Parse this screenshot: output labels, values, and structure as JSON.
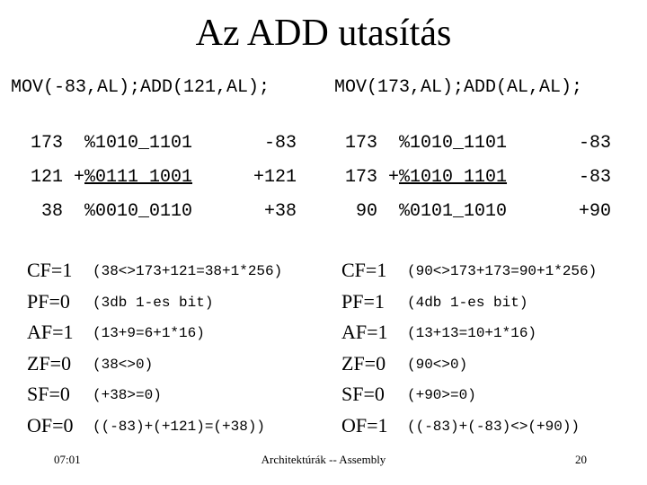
{
  "title": "Az ADD utasítás",
  "left": {
    "instruction": "MOV(-83,AL);ADD(121,AL);",
    "rows": [
      {
        "dec": "173",
        "bin": "%1010_1101",
        "signed": "-83"
      },
      {
        "dec": "121",
        "op": "+",
        "bin": "%0111_1001",
        "signed": "+121"
      },
      {
        "dec": "38",
        "bin": "%0010_0110",
        "signed": "+38"
      }
    ],
    "flags": [
      {
        "flag": "CF=1",
        "note": "(38<>173+121=38+1*256)"
      },
      {
        "flag": "PF=0",
        "note": "(3db 1-es bit)"
      },
      {
        "flag": "AF=1",
        "note": "(13+9=6+1*16)"
      },
      {
        "flag": "ZF=0",
        "note": "(38<>0)"
      },
      {
        "flag": "SF=0",
        "note": "(+38>=0)"
      },
      {
        "flag": "OF=0",
        "note": "((-83)+(+121)=(+38))"
      }
    ]
  },
  "right": {
    "instruction": "MOV(173,AL);ADD(AL,AL);",
    "rows": [
      {
        "dec": "173",
        "bin": "%1010_1101",
        "signed": "-83"
      },
      {
        "dec": "173",
        "op": "+",
        "bin": "%1010_1101",
        "signed": "-83"
      },
      {
        "dec": "90",
        "bin": "%0101_1010",
        "signed": "+90"
      }
    ],
    "flags": [
      {
        "flag": "CF=1",
        "note": "(90<>173+173=90+1*256)"
      },
      {
        "flag": "PF=1",
        "note": "(4db 1-es bit)"
      },
      {
        "flag": "AF=1",
        "note": "(13+13=10+1*16)"
      },
      {
        "flag": "ZF=0",
        "note": "(90<>0)"
      },
      {
        "flag": "SF=0",
        "note": "(+90>=0)"
      },
      {
        "flag": "OF=1",
        "note": "((-83)+(-83)<>(+90))"
      }
    ]
  },
  "footer": {
    "time": "07:01",
    "course": "Architektúrák -- Assembly",
    "page": "20"
  }
}
